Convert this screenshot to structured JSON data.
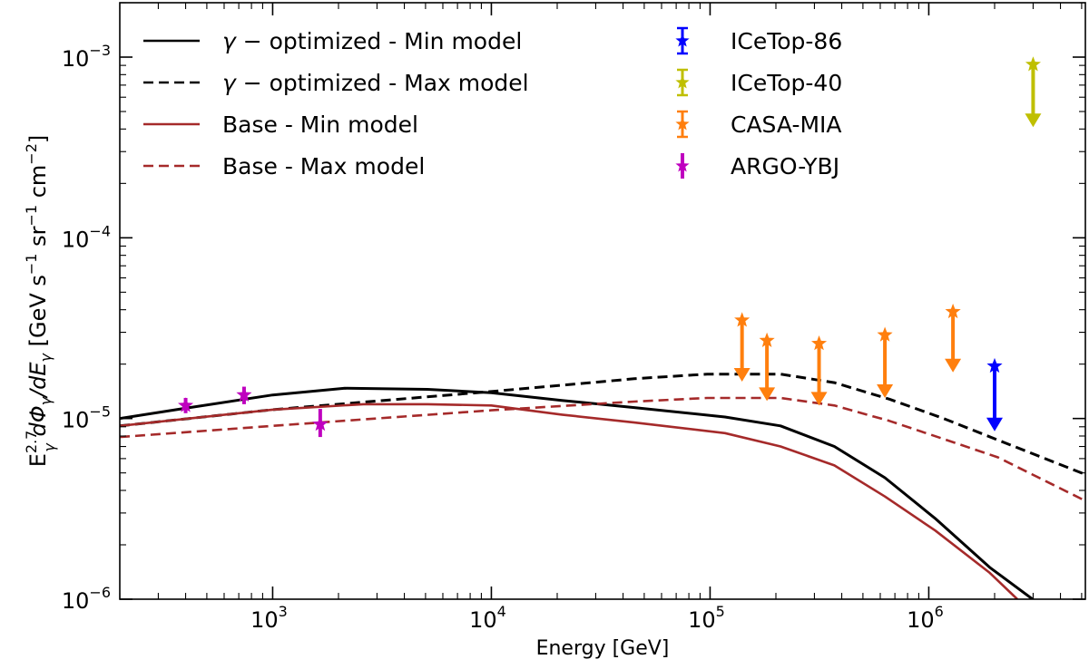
{
  "chart_data": {
    "type": "line",
    "title": "",
    "xlabel": "Energy [GeV]",
    "ylabel": "E_γ^2.7 dΦ_γ/dE_γ [GeV s^-1 sr^-1 cm^-2]",
    "ylabel_parts": {
      "main": "E",
      "sub": "γ",
      "sup": "2.7",
      "rest": " dΦ",
      "rest_sub": "γ",
      "slash": "/dE",
      "slash_sub": "γ",
      "units_open": " [GeV s",
      "s_exp": "−1",
      "sr": " sr",
      "sr_exp": "−1",
      "cm": " cm",
      "cm_exp": "−2",
      "units_close": "]"
    },
    "xscale": "log",
    "yscale": "log",
    "xlim": [
      200,
      5200000
    ],
    "ylim": [
      1e-06,
      0.002
    ],
    "grid": false,
    "legend_placement": "top (two columns)",
    "x_ticks": [
      {
        "value": 1000,
        "base": "10",
        "exp": "3"
      },
      {
        "value": 10000,
        "base": "10",
        "exp": "4"
      },
      {
        "value": 100000,
        "base": "10",
        "exp": "5"
      },
      {
        "value": 1000000,
        "base": "10",
        "exp": "6"
      }
    ],
    "y_ticks": [
      {
        "value": 0.001,
        "base": "10",
        "exp": "−3"
      },
      {
        "value": 0.0001,
        "base": "10",
        "exp": "−4"
      },
      {
        "value": 1e-05,
        "base": "10",
        "exp": "−5"
      },
      {
        "value": 1e-06,
        "base": "10",
        "exp": "−6"
      }
    ],
    "series": [
      {
        "name": "γ − optimized - Min model",
        "label_prefix": "γ",
        "label_rest": " − optimized - Min model",
        "color": "#000000",
        "dash": "solid",
        "x": [
          200,
          380,
          1000,
          2140,
          5110,
          10000,
          21000,
          45000,
          117000,
          210000,
          370000,
          630000,
          1070000,
          1900000,
          3400000
        ],
        "y": [
          1e-05,
          1.13e-05,
          1.35e-05,
          1.47e-05,
          1.45e-05,
          1.39e-05,
          1.26e-05,
          1.15e-05,
          1.02e-05,
          9.1e-06,
          7e-06,
          4.7e-06,
          2.8e-06,
          1.5e-06,
          8.9e-07
        ]
      },
      {
        "name": "γ − optimized - Max model",
        "label_prefix": "γ",
        "label_rest": " − optimized - Max model",
        "color": "#000000",
        "dash": "dashed",
        "x": [
          200,
          1000,
          10000,
          45000,
          97000,
          210000,
          370000,
          660000,
          1170000,
          2070000,
          5200000
        ],
        "y": [
          9.1e-06,
          1.12e-05,
          1.41e-05,
          1.66e-05,
          1.76e-05,
          1.76e-05,
          1.58e-05,
          1.28e-05,
          1e-05,
          7.6e-06,
          4.9e-06
        ]
      },
      {
        "name": "Base - Min model",
        "label_prefix": "",
        "label_rest": "Base - Min model",
        "color": "#a52a2a",
        "dash": "solid",
        "x": [
          200,
          1000,
          2600,
          5110,
          10000,
          21000,
          45000,
          117000,
          210000,
          370000,
          630000,
          1070000,
          1900000,
          2540000
        ],
        "y": [
          9.1e-06,
          1.12e-05,
          1.2e-05,
          1.2e-05,
          1.18e-05,
          1.05e-05,
          9.5e-06,
          8.3e-06,
          7e-06,
          5.5e-06,
          3.7e-06,
          2.4e-06,
          1.4e-06,
          1e-06
        ]
      },
      {
        "name": "Base - Max model",
        "label_prefix": "",
        "label_rest": "Base - Max model",
        "color": "#a52a2a",
        "dash": "dashed",
        "x": [
          200,
          1000,
          10000,
          45000,
          97000,
          210000,
          370000,
          660000,
          1170000,
          2070000,
          5200000
        ],
        "y": [
          7.9e-06,
          9.1e-06,
          1.11e-05,
          1.24e-05,
          1.3e-05,
          1.3e-05,
          1.18e-05,
          9.7e-06,
          7.7e-06,
          6.1e-06,
          3.5e-06
        ]
      }
    ],
    "data_series": [
      {
        "name": "ICeTop-86",
        "color": "#0000ff",
        "kind": "upper_limit",
        "points": [
          {
            "x": 2000000,
            "y": 1.95e-05,
            "arrow_to": 8.5e-06
          }
        ]
      },
      {
        "name": "ICeTop-40",
        "color": "#bfbf00",
        "kind": "upper_limit",
        "points": [
          {
            "x": 3000000,
            "y": 0.00091,
            "arrow_to": 0.00041
          }
        ]
      },
      {
        "name": "CASA-MIA",
        "color": "#ff7f0e",
        "kind": "upper_limit",
        "points": [
          {
            "x": 140000,
            "y": 3.5e-05,
            "arrow_to": 1.6e-05
          },
          {
            "x": 182000,
            "y": 2.7e-05,
            "arrow_to": 1.25e-05
          },
          {
            "x": 315000,
            "y": 2.6e-05,
            "arrow_to": 1.18e-05
          },
          {
            "x": 630000,
            "y": 2.9e-05,
            "arrow_to": 1.3e-05
          },
          {
            "x": 1290000,
            "y": 3.9e-05,
            "arrow_to": 1.8e-05
          }
        ]
      },
      {
        "name": "ARGO-YBJ",
        "color": "#bf00bf",
        "kind": "error_bar",
        "points": [
          {
            "x": 400,
            "y": 1.18e-05,
            "yerr_low": 1.07e-05,
            "yerr_high": 1.3e-05
          },
          {
            "x": 740,
            "y": 1.35e-05,
            "yerr_low": 1.2e-05,
            "yerr_high": 1.5e-05
          },
          {
            "x": 1650,
            "y": 9.3e-06,
            "yerr_low": 7.9e-06,
            "yerr_high": 1.13e-05
          }
        ]
      }
    ]
  }
}
